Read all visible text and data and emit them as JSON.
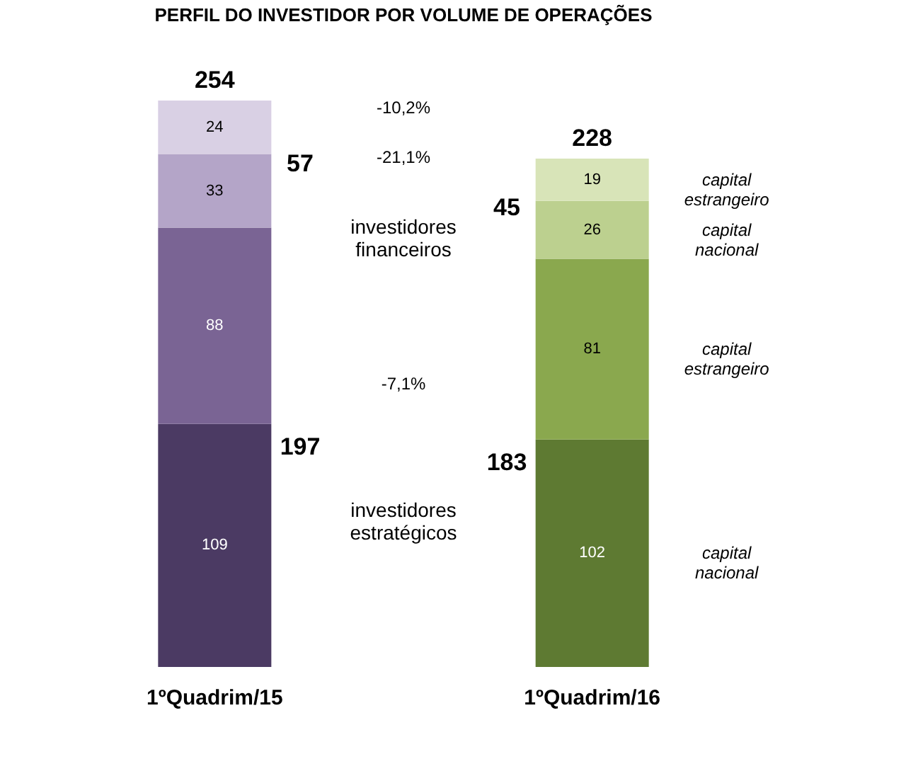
{
  "chart_data": {
    "type": "bar",
    "title": "PERFIL DO INVESTIDOR POR VOLUME DE OPERAÇÕES",
    "stacked": true,
    "data_labels": true,
    "categories": [
      "1ºQuadrim/15",
      "1ºQuadrim/16"
    ],
    "series": [
      {
        "name": "capital nacional",
        "colors": [
          "#4b3a63",
          "#5e7a32"
        ],
        "values": [
          109,
          102
        ]
      },
      {
        "name": "capital estrangeiro",
        "colors": [
          "#7a6494",
          "#8aa84e"
        ],
        "values": [
          88,
          81
        ]
      },
      {
        "name": "capital nacional",
        "colors": [
          "#b4a5c8",
          "#bcd08f"
        ],
        "values": [
          33,
          26
        ]
      },
      {
        "name": "capital estrangeiro",
        "colors": [
          "#d9d0e4",
          "#d8e4b8"
        ],
        "values": [
          24,
          19
        ]
      }
    ],
    "totals": [
      "254",
      "228"
    ],
    "annotations": [
      "197",
      "57",
      "183",
      "45",
      "-10,2%",
      "-21,1%",
      "-7,1%",
      "investidores financeiros",
      "investidores estratégicos"
    ]
  }
}
